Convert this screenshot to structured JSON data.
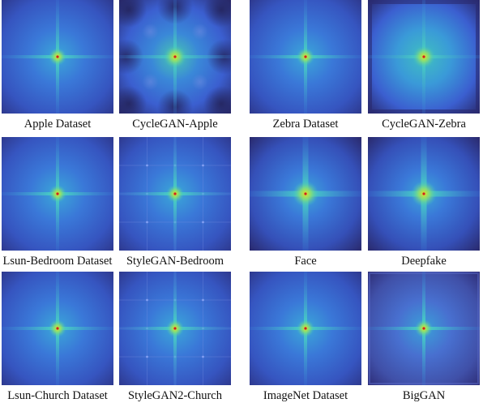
{
  "figure": {
    "panels": [
      {
        "label": "Apple Dataset",
        "style": "real"
      },
      {
        "label": "CycleGAN-Apple",
        "style": "cyclegan"
      },
      {
        "label": "Zebra Dataset",
        "style": "real"
      },
      {
        "label": "CycleGAN-Zebra",
        "style": "cyclegan-zebra"
      },
      {
        "label": "Lsun-Bedroom Dataset",
        "style": "real"
      },
      {
        "label": "StyleGAN-Bedroom",
        "style": "stylegan"
      },
      {
        "label": "Face",
        "style": "face"
      },
      {
        "label": "Deepfake",
        "style": "face"
      },
      {
        "label": "Lsun-Church Dataset",
        "style": "real"
      },
      {
        "label": "StyleGAN2-Church",
        "style": "stylegan"
      },
      {
        "label": "ImageNet Dataset",
        "style": "real"
      },
      {
        "label": "BigGAN",
        "style": "biggan"
      }
    ],
    "colors": {
      "edge": "#2a2a6e",
      "mid": "#3b5fd0",
      "core": "#3fc0c0",
      "peak": "#e8e020",
      "center": "#d02020"
    }
  }
}
